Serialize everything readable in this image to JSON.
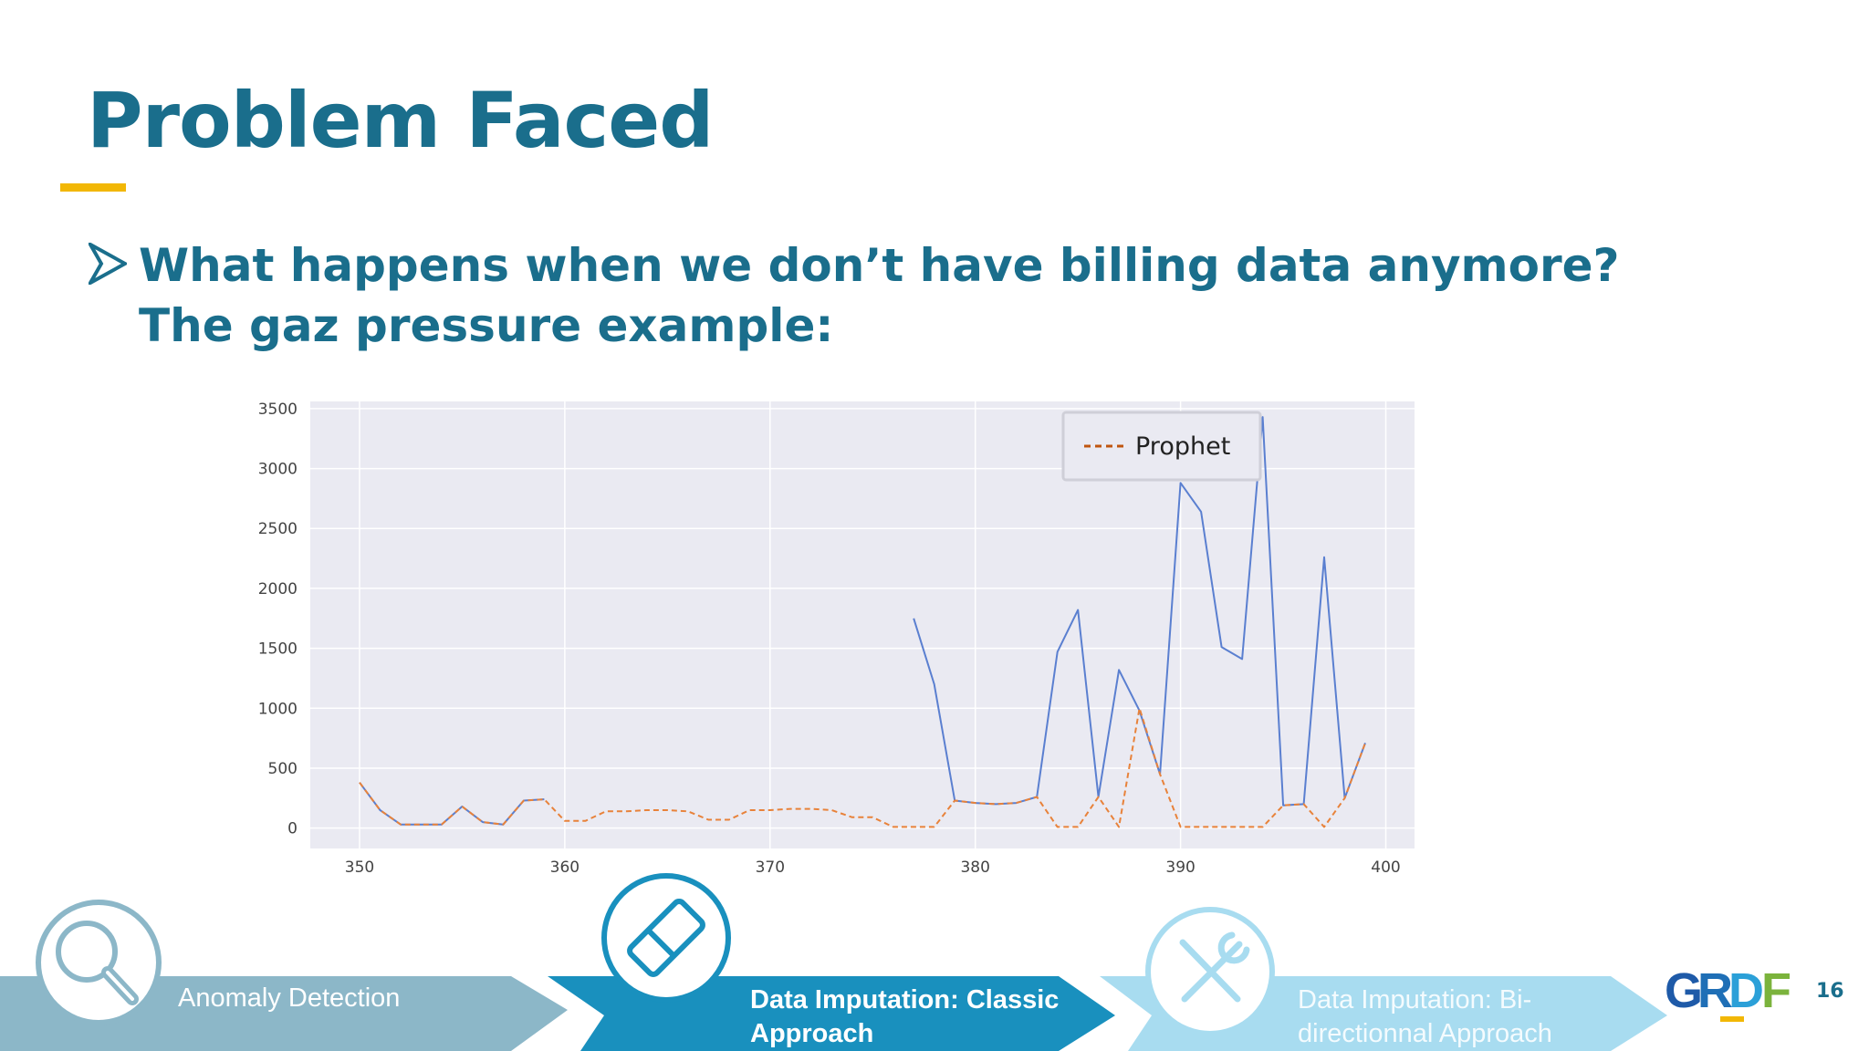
{
  "slide": {
    "title": "Problem Faced",
    "bullet": "What happens when we don’t have billing data anymore? The gaz pressure example:",
    "page_number": "16",
    "logo_text": "GRDF"
  },
  "colors": {
    "title": "#1a6e8c",
    "accent": "#f2b705",
    "plot_bg": "#eaeaf2",
    "actual_line": "#5a7fd0",
    "prophet_line": "#e8823a",
    "step1": "#8cb7c8",
    "step2": "#1990be",
    "step3": "#a8dcf0"
  },
  "steps": [
    {
      "label": "Anomaly Detection",
      "icon": "magnifier-icon",
      "state": "past"
    },
    {
      "label": "Data Imputation: Classic Approach",
      "icon": "eraser-icon",
      "state": "current"
    },
    {
      "label": "Data Imputation: Bi-directionnal Approach",
      "icon": "tools-icon",
      "state": "future"
    }
  ],
  "chart_data": {
    "type": "line",
    "title": "",
    "xlabel": "",
    "ylabel": "",
    "xlim": [
      347.6,
      401.4
    ],
    "ylim": [
      -170,
      3560
    ],
    "xticks": [
      350,
      360,
      370,
      380,
      390,
      400
    ],
    "yticks": [
      0,
      500,
      1000,
      1500,
      2000,
      2500,
      3000,
      3500
    ],
    "grid": true,
    "legend": {
      "position": "top-right",
      "entries": [
        "Prophet"
      ]
    },
    "series": [
      {
        "name": "",
        "style": "solid",
        "x": [
          350,
          351,
          352,
          353,
          354,
          355,
          356,
          357,
          358,
          359
        ],
        "y": [
          380,
          150,
          30,
          30,
          30,
          180,
          50,
          30,
          230,
          240
        ]
      },
      {
        "name": "",
        "style": "solid",
        "x": [
          377,
          378,
          379,
          380,
          381,
          382,
          383,
          384,
          385,
          386,
          387,
          388,
          389,
          390,
          391,
          392,
          393,
          394,
          395,
          396,
          397,
          398,
          399
        ],
        "y": [
          1750,
          1200,
          230,
          210,
          200,
          210,
          260,
          1470,
          1820,
          260,
          1320,
          980,
          450,
          2880,
          2640,
          1510,
          1410,
          3430,
          190,
          200,
          2260,
          250,
          710
        ]
      },
      {
        "name": "Prophet",
        "style": "dashed",
        "x": [
          350,
          351,
          352,
          353,
          354,
          355,
          356,
          357,
          358,
          359,
          360,
          361,
          362,
          363,
          364,
          365,
          366,
          367,
          368,
          369,
          370,
          371,
          372,
          373,
          374,
          375,
          376,
          377,
          378,
          379,
          380,
          381,
          382,
          383,
          384,
          385,
          386,
          387,
          388,
          389,
          390,
          391,
          392,
          393,
          394,
          395,
          396,
          397,
          398,
          399
        ],
        "y": [
          380,
          150,
          30,
          30,
          30,
          180,
          50,
          30,
          230,
          240,
          60,
          60,
          140,
          140,
          150,
          150,
          140,
          70,
          70,
          150,
          150,
          160,
          160,
          150,
          90,
          90,
          10,
          10,
          10,
          230,
          210,
          200,
          210,
          260,
          10,
          10,
          260,
          10,
          1000,
          450,
          10,
          10,
          10,
          10,
          10,
          190,
          200,
          10,
          250,
          710
        ]
      }
    ]
  }
}
